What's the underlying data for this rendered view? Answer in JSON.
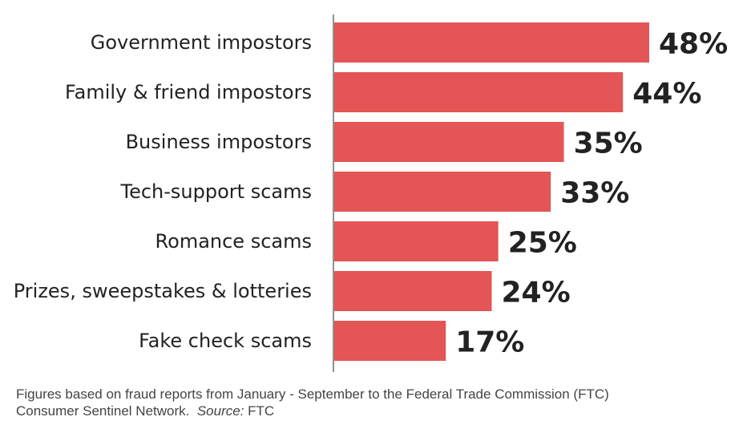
{
  "chart_data": {
    "type": "bar",
    "orientation": "horizontal",
    "categories": [
      "Government impostors",
      "Family & friend impostors",
      "Business impostors",
      "Tech-support scams",
      "Romance scams",
      "Prizes, sweepstakes & lotteries",
      "Fake check scams"
    ],
    "values": [
      48,
      44,
      35,
      33,
      25,
      24,
      17
    ],
    "value_labels": [
      "48%",
      "44%",
      "35%",
      "33%",
      "25%",
      "24%",
      "17%"
    ],
    "unit": "%",
    "xlim": [
      0,
      48
    ],
    "bar_color": "#e45555",
    "grid": false,
    "legend": "none"
  },
  "footnote": {
    "line1": "Figures based on fraud reports from January - September to the Federal Trade Commission (FTC)",
    "line2_text": "Consumer Sentinel Network.",
    "source_label": "Source:",
    "source_value": "FTC"
  }
}
